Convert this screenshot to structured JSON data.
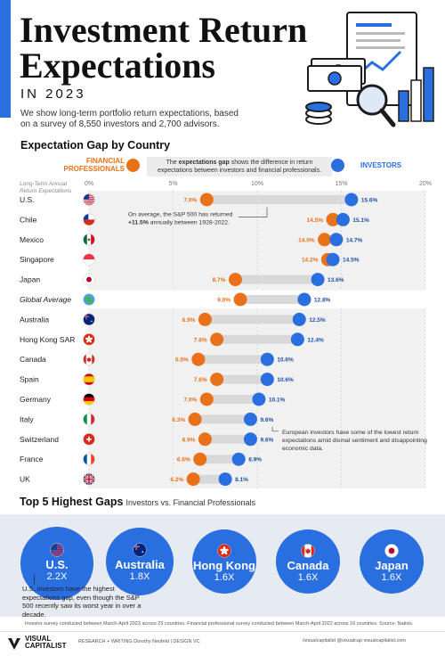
{
  "header": {
    "title_line1": "Investment Return",
    "title_line2": "Expectations",
    "year": "IN 2023",
    "intro": "We show long-term portfolio return expectations, based on a survey of 8,550 investors and 2,700 advisors."
  },
  "section1": {
    "title": "Expectation Gap by Country",
    "legend_financial": [
      "FINANCIAL",
      "PROFESSIONALS"
    ],
    "legend_investors": "INVESTORS",
    "legend_note_bold": "expectations gap",
    "legend_note_pre": "The ",
    "legend_note_post": " shows the difference in return expectations between investors and financial professionals.",
    "axis_title_line1": "Long-Term Annual",
    "axis_title_line2": "Return Expectations",
    "annotation_sp_pre": "On average, the S&P 500 has returned",
    "annotation_sp_bold": "+11.5%",
    "annotation_sp_post": " annually between 1928-2022.",
    "annotation_europe": "European investors have some of the lowest return expectations amid dismal sentiment and disappointing economic data."
  },
  "chart_data": {
    "type": "scatter",
    "xlim": [
      0,
      20
    ],
    "xticks": [
      "0%",
      "5%",
      "10%",
      "15%",
      "20%"
    ],
    "xtick_values": [
      0,
      5,
      10,
      15,
      20
    ],
    "series_names": [
      "Financial Professionals",
      "Investors"
    ],
    "colors": {
      "financial": "#e8711a",
      "investors": "#2a6fe0",
      "gap": "#d9d9d9"
    },
    "rows": [
      {
        "country": "U.S.",
        "flag": "us",
        "financial": 7.0,
        "investors": 15.6,
        "fin_label": "7.0%",
        "inv_label": "15.6%"
      },
      {
        "country": "Chile",
        "flag": "cl",
        "financial": 14.5,
        "investors": 15.1,
        "fin_label": "14.5%",
        "inv_label": "15.1%"
      },
      {
        "country": "Mexico",
        "flag": "mx",
        "financial": 14.0,
        "investors": 14.7,
        "fin_label": "14.0%",
        "inv_label": "14.7%"
      },
      {
        "country": "Singapore",
        "flag": "sg",
        "financial": 14.2,
        "investors": 14.5,
        "fin_label": "14.2%",
        "inv_label": "14.5%"
      },
      {
        "country": "Japan",
        "flag": "jp",
        "financial": 8.7,
        "investors": 13.6,
        "fin_label": "8.7%",
        "inv_label": "13.6%"
      },
      {
        "country": "Global Average",
        "flag": "globe",
        "financial": 9.0,
        "investors": 12.8,
        "fin_label": "9.0%",
        "inv_label": "12.8%",
        "italic": true
      },
      {
        "country": "Australia",
        "flag": "au",
        "financial": 6.9,
        "investors": 12.5,
        "fin_label": "6.9%",
        "inv_label": "12.5%"
      },
      {
        "country": "Hong Kong SAR",
        "flag": "hk",
        "financial": 7.6,
        "investors": 12.4,
        "fin_label": "7.6%",
        "inv_label": "12.4%"
      },
      {
        "country": "Canada",
        "flag": "ca",
        "financial": 6.5,
        "investors": 10.6,
        "fin_label": "6.5%",
        "inv_label": "10.6%"
      },
      {
        "country": "Spain",
        "flag": "es",
        "financial": 7.6,
        "investors": 10.6,
        "fin_label": "7.6%",
        "inv_label": "10.6%"
      },
      {
        "country": "Germany",
        "flag": "de",
        "financial": 7.0,
        "investors": 10.1,
        "fin_label": "7.0%",
        "inv_label": "10.1%"
      },
      {
        "country": "Italy",
        "flag": "it",
        "financial": 6.3,
        "investors": 9.6,
        "fin_label": "6.3%",
        "inv_label": "9.6%"
      },
      {
        "country": "Switzerland",
        "flag": "ch",
        "financial": 6.9,
        "investors": 9.6,
        "fin_label": "6.9%",
        "inv_label": "9.6%"
      },
      {
        "country": "France",
        "flag": "fr",
        "financial": 6.6,
        "investors": 8.9,
        "fin_label": "6.6%",
        "inv_label": "8.9%"
      },
      {
        "country": "UK",
        "flag": "gb",
        "financial": 6.2,
        "investors": 8.1,
        "fin_label": "6.2%",
        "inv_label": "8.1%"
      }
    ]
  },
  "section2": {
    "title": "Top 5 Highest Gaps",
    "subtitle": "Investors vs. Financial Professionals",
    "bubbles": [
      {
        "name": "U.S.",
        "ratio": "2.2X",
        "flag": "us"
      },
      {
        "name": "Australia",
        "ratio": "1.8X",
        "flag": "au"
      },
      {
        "name": "Hong Kong",
        "ratio": "1.6X",
        "flag": "hk"
      },
      {
        "name": "Canada",
        "ratio": "1.6X",
        "flag": "ca"
      },
      {
        "name": "Japan",
        "ratio": "1.6X",
        "flag": "jp"
      }
    ],
    "note": "U.S. investors have the highest expectations gap, even though the S&P 500 recently saw its worst year in over a decade."
  },
  "source": "Investor survey conducted between March-April 2023 across 23 countries. Financial professional survey conducted between March-April 2022 across 16 countries. Source: Natixis.",
  "footer": {
    "logo_line1": "VISUAL",
    "logo_line2": "CAPITALIST",
    "credits": "RESEARCH + WRITING Dorothy Neufeld | DESIGN VC",
    "socials": "/visualcapitalist   @visualcap   visualcapitalist.com"
  }
}
